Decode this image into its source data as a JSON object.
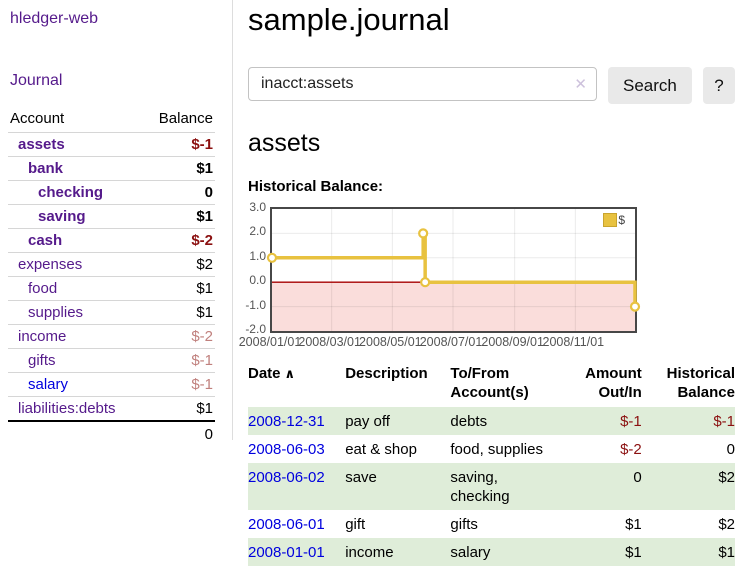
{
  "palette": {
    "purple_link": "#551A8B",
    "blue_link": "#0000DE",
    "neg_strong": "#8B1010",
    "neg_muted": "#C0807D",
    "stripe_green": "#DFEDD9",
    "chart_line": "#E8C240",
    "chart_border": "#474747",
    "axis_label": "#545454",
    "btn_bg": "#E9E9E9",
    "divider": "#DDDDDD",
    "row_border": "#D6D6D6"
  },
  "icons": {
    "clear": "✕",
    "sort_ascending": "∧"
  },
  "sidebar": {
    "app_title": "hledger-web",
    "journal_label": "Journal",
    "accounts_table": {
      "headers": {
        "account": "Account",
        "balance": "Balance"
      },
      "rows": [
        {
          "name": "assets",
          "balance": "$-1",
          "depth": 0,
          "emphasis": true,
          "link": "visited",
          "balance_style": "neg-strong"
        },
        {
          "name": "bank",
          "balance": "$1",
          "depth": 1,
          "emphasis": true,
          "link": "visited",
          "balance_style": "normal"
        },
        {
          "name": "checking",
          "balance": "0",
          "depth": 2,
          "emphasis": true,
          "link": "visited",
          "balance_style": "normal"
        },
        {
          "name": "saving",
          "balance": "$1",
          "depth": 2,
          "emphasis": true,
          "link": "visited",
          "balance_style": "normal"
        },
        {
          "name": "cash",
          "balance": "$-2",
          "depth": 1,
          "emphasis": true,
          "link": "visited",
          "balance_style": "neg-strong"
        },
        {
          "name": "expenses",
          "balance": "$2",
          "depth": 0,
          "emphasis": false,
          "link": "visited",
          "balance_style": "normal"
        },
        {
          "name": "food",
          "balance": "$1",
          "depth": 1,
          "emphasis": false,
          "link": "visited",
          "balance_style": "normal"
        },
        {
          "name": "supplies",
          "balance": "$1",
          "depth": 1,
          "emphasis": false,
          "link": "visited",
          "balance_style": "normal"
        },
        {
          "name": "income",
          "balance": "$-2",
          "depth": 0,
          "emphasis": false,
          "link": "visited",
          "balance_style": "neg-muted"
        },
        {
          "name": "gifts",
          "balance": "$-1",
          "depth": 1,
          "emphasis": false,
          "link": "visited",
          "balance_style": "neg-muted"
        },
        {
          "name": "salary",
          "balance": "$-1",
          "depth": 1,
          "emphasis": false,
          "link": "new",
          "balance_style": "neg-muted"
        },
        {
          "name": "liabilities:debts",
          "balance": "$1",
          "depth": 0,
          "emphasis": false,
          "link": "visited",
          "balance_style": "normal"
        }
      ],
      "total": "0"
    }
  },
  "main": {
    "title": "sample.journal",
    "search": {
      "value": "inacct:assets",
      "button_label": "Search",
      "help_label": "?"
    },
    "account_heading": "assets",
    "chart_label": "Historical Balance:"
  },
  "chart_data": {
    "type": "line",
    "subtype": "step",
    "title": "Historical Balance",
    "series": [
      {
        "name": "$",
        "color": "#E8C240",
        "points": [
          [
            "2008-01-01",
            1
          ],
          [
            "2008-06-01",
            2
          ],
          [
            "2008-06-03",
            0
          ],
          [
            "2008-12-31",
            -1
          ]
        ]
      }
    ],
    "x_range": [
      "2008-01-01",
      "2008-12-31"
    ],
    "ylim": [
      -2,
      3
    ],
    "x_ticks": [
      {
        "date": "2008-01-01",
        "label": "2008/01/01"
      },
      {
        "date": "2008-03-01",
        "label": "2008/03/01"
      },
      {
        "date": "2008-05-01",
        "label": "2008/05/01"
      },
      {
        "date": "2008-07-01",
        "label": "2008/07/01"
      },
      {
        "date": "2008-09-01",
        "label": "2008/09/01"
      },
      {
        "date": "2008-11-01",
        "label": "2008/11/01"
      }
    ],
    "y_ticks": [
      {
        "value": 3,
        "label": "3.0"
      },
      {
        "value": 2,
        "label": "2.0"
      },
      {
        "value": 1,
        "label": "1.0"
      },
      {
        "value": 0,
        "label": "0.0"
      },
      {
        "value": -1,
        "label": "-1.0"
      },
      {
        "value": -2,
        "label": "-2.0"
      }
    ],
    "legend": {
      "position": "top-right",
      "label": "$"
    },
    "grid": true,
    "negative_region": {
      "from": 0,
      "to": -2,
      "color": "#F8D2CF",
      "line_color": "#A50000"
    }
  },
  "register": {
    "headers": [
      {
        "label": "Date",
        "align": "left",
        "sortable": true
      },
      {
        "label": "Description",
        "align": "left"
      },
      {
        "label": "To/From\nAccount(s)",
        "align": "left"
      },
      {
        "label": "Amount\nOut/In",
        "align": "right"
      },
      {
        "label": "Historical\nBalance",
        "align": "right"
      }
    ],
    "rows": [
      {
        "date": "2008-12-31",
        "description": "pay off",
        "accounts": "debts",
        "amount": "$-1",
        "amount_neg": true,
        "balance": "$-1",
        "balance_neg": true
      },
      {
        "date": "2008-06-03",
        "description": "eat & shop",
        "accounts": "food, supplies",
        "amount": "$-2",
        "amount_neg": true,
        "balance": "0",
        "balance_neg": false
      },
      {
        "date": "2008-06-02",
        "description": "save",
        "accounts": "saving,\nchecking",
        "amount": "0",
        "amount_neg": false,
        "balance": "$2",
        "balance_neg": false
      },
      {
        "date": "2008-06-01",
        "description": "gift",
        "accounts": "gifts",
        "amount": "$1",
        "amount_neg": false,
        "balance": "$2",
        "balance_neg": false
      },
      {
        "date": "2008-01-01",
        "description": "income",
        "accounts": "salary",
        "amount": "$1",
        "amount_neg": false,
        "balance": "$1",
        "balance_neg": false
      }
    ]
  }
}
